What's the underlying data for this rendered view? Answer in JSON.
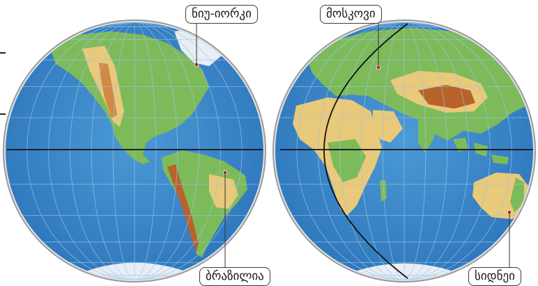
{
  "labels": {
    "new_york": "ნიუ-იორკი",
    "moscow": "მოსკოვი",
    "brasilia": "ბრაზილია",
    "sydney": "სიდნეი"
  },
  "top_strip_text": "",
  "colors": {
    "ocean": "#3f8fcf",
    "ocean_deep": "#2f78bd",
    "lowland": "#7dbb5a",
    "upland": "#e9c97a",
    "highland": "#d08a45",
    "mountain": "#b8622c",
    "ice": "#e8eef4",
    "graticule": "#9cc6e8",
    "rim": "#9a9a9a",
    "accent_text": "#d8432e"
  }
}
